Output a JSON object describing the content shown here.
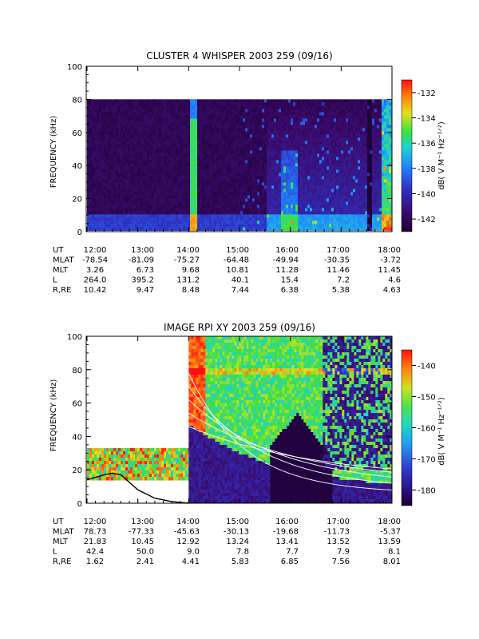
{
  "colors": {
    "background": "#ffffff",
    "frame": "#000000",
    "whisper_bg": "#1b0b2e",
    "rpi_bg": "#2a0a45"
  },
  "chart_data": [
    {
      "type": "heatmap",
      "title": "CLUSTER 4 WHISPER 2003 259 (09/16)",
      "ylabel": "FREQUENCY (kHz)",
      "ylim": [
        0,
        100
      ],
      "yticks": [
        "0",
        "20",
        "40",
        "60",
        "80",
        "100"
      ],
      "xticks": [
        "12:00",
        "13:00",
        "14:00",
        "15:00",
        "16:00",
        "17:00",
        "18:00"
      ],
      "data_ymax": 80,
      "colorbar": {
        "label": "dB( V M⁻¹ Hz⁻¹ᐟ²)",
        "range": [
          -143,
          -131
        ],
        "ticks": [
          "-132",
          "-134",
          "-136",
          "-138",
          "-140",
          "-142"
        ]
      },
      "ephemeris": [
        {
          "label": "UT",
          "values": [
            "12:00",
            "13:00",
            "14:00",
            "15:00",
            "16:00",
            "17:00",
            "18:00"
          ]
        },
        {
          "label": "MLAT",
          "values": [
            "-78.54",
            "-81.09",
            "-75.27",
            "-64.48",
            "-49.94",
            "-30.35",
            "-3.72"
          ]
        },
        {
          "label": "MLT",
          "values": [
            "3.26",
            "6.73",
            "9.68",
            "10.81",
            "11.28",
            "11.46",
            "11.45"
          ]
        },
        {
          "label": "L",
          "values": [
            "264.0",
            "395.2",
            "131.2",
            "40.1",
            "15.4",
            "7.2",
            "4.6"
          ]
        },
        {
          "label": "R,RE",
          "values": [
            "10.42",
            "9.47",
            "8.48",
            "7.44",
            "6.38",
            "5.38",
            "4.63"
          ]
        }
      ]
    },
    {
      "type": "heatmap",
      "title": "IMAGE RPI XY 2003 259 (09/16)",
      "ylabel": "FREQUENCY (kHz)",
      "ylim": [
        0,
        100
      ],
      "yticks": [
        "0",
        "20",
        "40",
        "60",
        "80",
        "100"
      ],
      "xticks": [
        "12:00",
        "13:00",
        "14:00",
        "15:00",
        "16:00",
        "17:00",
        "18:00"
      ],
      "colorbar": {
        "label": "dB( V M⁻¹ Hz⁻¹ᐟ²)",
        "range": [
          -185,
          -135
        ],
        "ticks": [
          "-140",
          "-150",
          "-160",
          "-170",
          "-180"
        ]
      },
      "ephemeris": [
        {
          "label": "UT",
          "values": [
            "12:00",
            "13:00",
            "14:00",
            "15:00",
            "16:00",
            "17:00",
            "18:00"
          ]
        },
        {
          "label": "MLAT",
          "values": [
            "78.73",
            "-77.33",
            "-45.63",
            "-30.13",
            "-19.68",
            "-11.73",
            "-5.37"
          ]
        },
        {
          "label": "MLT",
          "values": [
            "21.83",
            "10.45",
            "12.92",
            "13.24",
            "13.41",
            "13.52",
            "13.59"
          ]
        },
        {
          "label": "L",
          "values": [
            "42.4",
            "50.0",
            "9.0",
            "7.8",
            "7.7",
            "7.9",
            "8.1"
          ]
        },
        {
          "label": "R,RE",
          "values": [
            "1.62",
            "2.41",
            "4.41",
            "5.83",
            "6.85",
            "7.56",
            "8.01"
          ]
        }
      ],
      "overlay_curve": {
        "description_visible": false,
        "x": [
          "12:00",
          "12:20",
          "12:30",
          "12:40",
          "13:00",
          "13:20",
          "13:40",
          "14:00"
        ],
        "y": [
          14,
          17,
          18,
          17,
          8,
          3,
          1,
          0
        ]
      }
    }
  ]
}
